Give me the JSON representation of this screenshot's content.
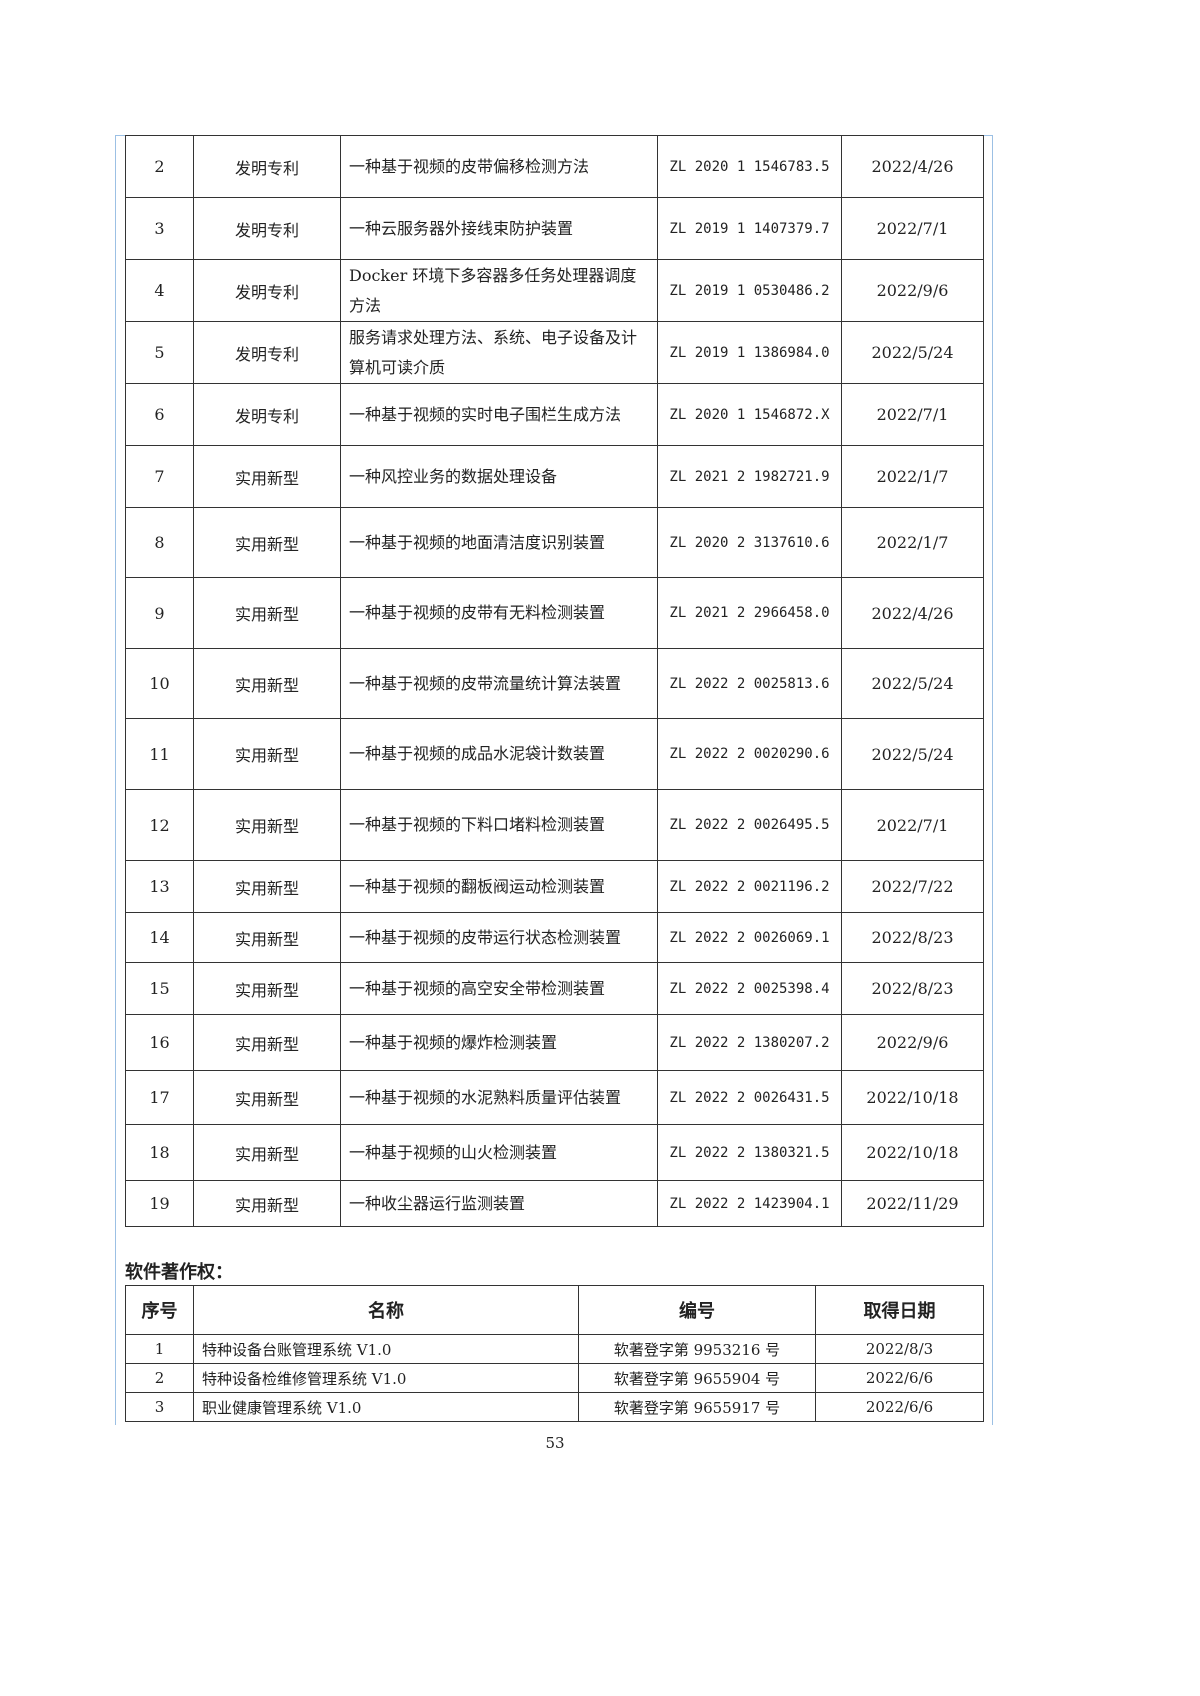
{
  "patents": [
    {
      "no": "2",
      "type": "发明专利",
      "name": "一种基于视频的皮带偏移检测方法",
      "number": "ZL 2020 1 1546783.5",
      "date": "2022/4/26"
    },
    {
      "no": "3",
      "type": "发明专利",
      "name": "一种云服务器外接线束防护装置",
      "number": "ZL 2019 1 1407379.7",
      "date": "2022/7/1"
    },
    {
      "no": "4",
      "type": "发明专利",
      "name": "Docker 环境下多容器多任务处理器调度方法",
      "number": "ZL 2019 1 0530486.2",
      "date": "2022/9/6"
    },
    {
      "no": "5",
      "type": "发明专利",
      "name": "服务请求处理方法、系统、电子设备及计算机可读介质",
      "number": "ZL 2019 1 1386984.0",
      "date": "2022/5/24"
    },
    {
      "no": "6",
      "type": "发明专利",
      "name": "一种基于视频的实时电子围栏生成方法",
      "number": "ZL 2020 1 1546872.X",
      "date": "2022/7/1"
    },
    {
      "no": "7",
      "type": "实用新型",
      "name": "一种风控业务的数据处理设备",
      "number": "ZL 2021 2 1982721.9",
      "date": "2022/1/7"
    },
    {
      "no": "8",
      "type": "实用新型",
      "name": "一种基于视频的地面清洁度识别装置",
      "number": "ZL 2020 2 3137610.6",
      "date": "2022/1/7"
    },
    {
      "no": "9",
      "type": "实用新型",
      "name": "一种基于视频的皮带有无料检测装置",
      "number": "ZL 2021 2 2966458.0",
      "date": "2022/4/26"
    },
    {
      "no": "10",
      "type": "实用新型",
      "name": "一种基于视频的皮带流量统计算法装置",
      "number": "ZL 2022 2 0025813.6",
      "date": "2022/5/24"
    },
    {
      "no": "11",
      "type": "实用新型",
      "name": "一种基于视频的成品水泥袋计数装置",
      "number": "ZL 2022 2 0020290.6",
      "date": "2022/5/24"
    },
    {
      "no": "12",
      "type": "实用新型",
      "name": "一种基于视频的下料口堵料检测装置",
      "number": "ZL 2022 2 0026495.5",
      "date": "2022/7/1"
    },
    {
      "no": "13",
      "type": "实用新型",
      "name": "一种基于视频的翻板阀运动检测装置",
      "number": "ZL 2022 2 0021196.2",
      "date": "2022/7/22"
    },
    {
      "no": "14",
      "type": "实用新型",
      "name": "一种基于视频的皮带运行状态检测装置",
      "number": "ZL 2022 2 0026069.1",
      "date": "2022/8/23"
    },
    {
      "no": "15",
      "type": "实用新型",
      "name": "一种基于视频的高空安全带检测装置",
      "number": "ZL 2022 2 0025398.4",
      "date": "2022/8/23"
    },
    {
      "no": "16",
      "type": "实用新型",
      "name": "一种基于视频的爆炸检测装置",
      "number": "ZL 2022 2 1380207.2",
      "date": "2022/9/6"
    },
    {
      "no": "17",
      "type": "实用新型",
      "name": "一种基于视频的水泥熟料质量评估装置",
      "number": "ZL 2022 2 0026431.5",
      "date": "2022/10/18"
    },
    {
      "no": "18",
      "type": "实用新型",
      "name": "一种基于视频的山火检测装置",
      "number": "ZL 2022 2 1380321.5",
      "date": "2022/10/18"
    },
    {
      "no": "19",
      "type": "实用新型",
      "name": "一种收尘器运行监测装置",
      "number": "ZL 2022 2 1423904.1",
      "date": "2022/11/29"
    }
  ],
  "software": {
    "heading": "软件著作权：",
    "headers": [
      "序号",
      "名称",
      "编号",
      "取得日期"
    ],
    "rows": [
      {
        "no": "1",
        "name": "特种设备台账管理系统 V1.0",
        "number": "软著登字第 9953216 号",
        "date": "2022/8/3"
      },
      {
        "no": "2",
        "name": "特种设备检维修管理系统 V1.0",
        "number": "软著登字第 9655904 号",
        "date": "2022/6/6"
      },
      {
        "no": "3",
        "name": "职业健康管理系统 V1.0",
        "number": "软著登字第 9655917 号",
        "date": "2022/6/6"
      }
    ]
  },
  "page_number": "53"
}
